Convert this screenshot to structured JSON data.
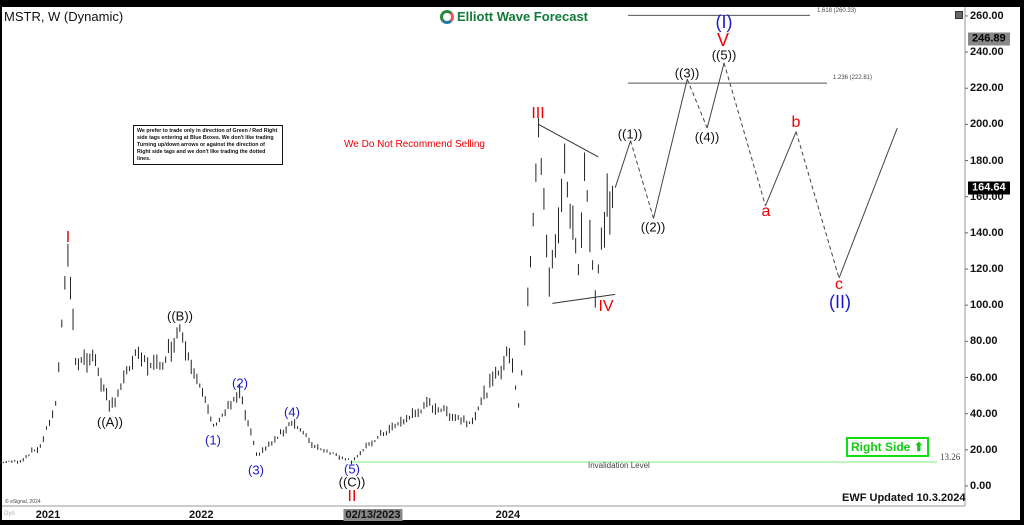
{
  "header": {
    "title": "MSTR, W (Dynamic)",
    "logo_text": "Elliott Wave Forecast"
  },
  "note": "We prefer to trade only in direction of Green / Red Right side tags entering at Blue Boxes. We don't like trading Turning up/down arrows or against the direction of Right side tags and we don't like trading the dotted lines.",
  "no_sell": "We Do Not Recommend Selling",
  "right_side": {
    "label": "Right Side",
    "icon": "arrow-up-icon",
    "color": "#1ed11e"
  },
  "updated": "EWF Updated 10.3.2024",
  "copyright": "© eSignal, 2024",
  "dyn": "Dyn",
  "chart_data": {
    "type": "candlestick",
    "symbol": "MSTR",
    "interval": "W",
    "ylim": [
      0,
      260
    ],
    "yticks": [
      "0.00",
      "20.00",
      "40.00",
      "60.00",
      "80.00",
      "100.00",
      "120.00",
      "140.00",
      "160.00",
      "180.00",
      "200.00",
      "220.00",
      "240.00",
      "260.00"
    ],
    "xticks": [
      {
        "label": "2021",
        "t": 2021
      },
      {
        "label": "2022",
        "t": 2022
      },
      {
        "label": "02/13/2023",
        "t": 2023.12,
        "highlight": true
      },
      {
        "label": "2024",
        "t": 2024
      }
    ],
    "price_pivots": [
      [
        2020.69,
        13
      ],
      [
        2020.82,
        14
      ],
      [
        2020.95,
        22
      ],
      [
        2021.05,
        45
      ],
      [
        2021.13,
        131
      ],
      [
        2021.18,
        70
      ],
      [
        2021.31,
        70
      ],
      [
        2021.4,
        42
      ],
      [
        2021.57,
        72
      ],
      [
        2021.73,
        65
      ],
      [
        2021.86,
        88
      ],
      [
        2021.99,
        55
      ],
      [
        2022.08,
        33
      ],
      [
        2022.25,
        51
      ],
      [
        2022.36,
        17
      ],
      [
        2022.48,
        25
      ],
      [
        2022.59,
        36
      ],
      [
        2022.74,
        22
      ],
      [
        2022.98,
        14
      ],
      [
        2023.17,
        28
      ],
      [
        2023.49,
        45
      ],
      [
        2023.75,
        35
      ],
      [
        2023.92,
        60
      ],
      [
        2024.01,
        75
      ],
      [
        2024.07,
        45
      ],
      [
        2024.13,
        100
      ],
      [
        2024.2,
        200
      ],
      [
        2024.27,
        110
      ],
      [
        2024.37,
        175
      ],
      [
        2024.46,
        120
      ],
      [
        2024.5,
        180
      ],
      [
        2024.57,
        103
      ],
      [
        2024.63,
        150
      ],
      [
        2024.7,
        165
      ]
    ],
    "projection": [
      {
        "t": 2024.7,
        "p": 165
      },
      {
        "t": 2024.8,
        "p": 191,
        "style": "solid"
      },
      {
        "t": 2024.95,
        "p": 148,
        "style": "dashed"
      },
      {
        "t": 2025.17,
        "p": 225,
        "style": "solid"
      },
      {
        "t": 2025.3,
        "p": 198,
        "style": "dashed"
      },
      {
        "t": 2025.41,
        "p": 234,
        "style": "solid"
      },
      {
        "t": 2025.68,
        "p": 155,
        "style": "dashed"
      },
      {
        "t": 2025.88,
        "p": 196,
        "style": "solid"
      },
      {
        "t": 2026.16,
        "p": 115,
        "style": "dashed"
      },
      {
        "t": 2026.54,
        "p": 198,
        "style": "solid"
      }
    ],
    "triangle": [
      [
        [
          2024.2,
          200
        ],
        [
          2024.59,
          182
        ]
      ],
      [
        [
          2024.29,
          101
        ],
        [
          2024.7,
          106
        ]
      ]
    ],
    "fib_levels": [
      {
        "label": "1.618 (260.33)",
        "value": 260.33
      },
      {
        "label": "1.236 (222.81)",
        "value": 222.81
      }
    ],
    "invalidation": {
      "label": "Invalidation Level",
      "value": 13.26,
      "value_label": "13.26",
      "color": "#7ee87e"
    },
    "price_tags": [
      {
        "label": "246.89",
        "value": 246.89,
        "color": "#888888"
      },
      {
        "label": "164.64",
        "value": 164.64,
        "color": "#000000"
      }
    ],
    "wave_labels": [
      "I",
      "((A))",
      "((B))",
      "(1)",
      "(2)",
      "(3)",
      "(4)",
      "(5)",
      "((C))",
      "II",
      "III",
      "IV",
      "((1))",
      "((2))",
      "((3))",
      "((4))",
      "((5))",
      "V",
      "(I)",
      "a",
      "b",
      "c",
      "(II)"
    ]
  }
}
